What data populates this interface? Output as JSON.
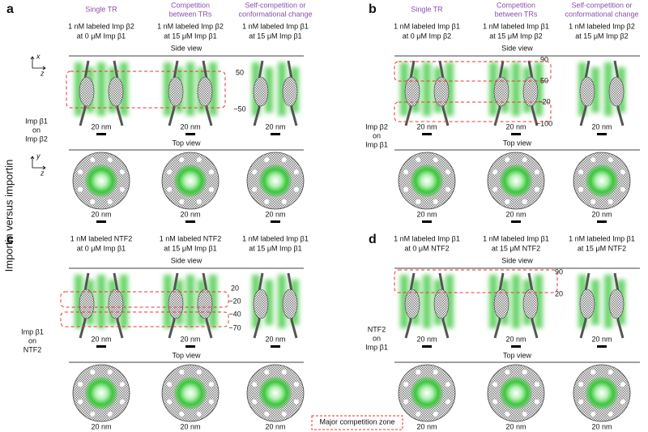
{
  "side_label": "Importin versus importin",
  "legend": "Major competition zone",
  "panels": [
    {
      "letter": "a",
      "columns": [
        {
          "title": [
            "Single TR"
          ],
          "condition": [
            "1 nM labeled Imp β2",
            "at 0 μM Imp β1"
          ]
        },
        {
          "title": [
            "Competition",
            "between TRs"
          ],
          "condition": [
            "1 nM labeled Imp β2",
            "at 15 μM Imp β1"
          ]
        },
        {
          "title": [
            "Self-competition or",
            "conformational change"
          ],
          "condition": [
            "1 nM labeled Imp β1",
            "at 15 μM Imp β1"
          ]
        }
      ],
      "side_view": "Side view",
      "top_view": "Top view",
      "scale": "20 nm",
      "positions": [
        "50",
        "−50"
      ],
      "pair": [
        "Imp β1",
        "on",
        "Imp β2"
      ],
      "axes": {
        "side": [
          "x",
          "z"
        ],
        "top": [
          "y",
          "z"
        ]
      }
    },
    {
      "letter": "b",
      "columns": [
        {
          "title": [
            "Single TR"
          ],
          "condition": [
            "1 nM labeled Imp β1",
            "at 0 μM Imp β2"
          ]
        },
        {
          "title": [
            "Competition",
            "between TRs"
          ],
          "condition": [
            "1 nM labeled Imp β1",
            "at 15 μM Imp β2"
          ]
        },
        {
          "title": [
            "Self-competition or",
            "conformational change"
          ],
          "condition": [
            "1 nM labeled Imp β2",
            "at 15 μM Imp β2"
          ]
        }
      ],
      "side_view": "Side view",
      "top_view": "Top view",
      "scale": "20 nm",
      "positions": [
        "90",
        "50",
        "−20",
        "−100"
      ],
      "pair": [
        "Imp β2",
        "on",
        "Imp β1"
      ]
    },
    {
      "letter": "c",
      "columns": [
        {
          "condition": [
            "1 nM labeled NTF2",
            "at 0 μM Imp β1"
          ]
        },
        {
          "condition": [
            "1 nM labeled NTF2",
            "at 15 μM Imp β1"
          ]
        },
        {
          "condition": [
            "1 nM labeled Imp β1",
            "at 15 μM Imp β1"
          ]
        }
      ],
      "side_view": "Side view",
      "top_view": "Top view",
      "scale": "20 nm",
      "positions": [
        "20",
        "−20",
        "−40",
        "−70"
      ],
      "pair": [
        "Imp β1",
        "on",
        "NTF2"
      ]
    },
    {
      "letter": "d",
      "columns": [
        {
          "condition": [
            "1 nM labeled Imp β1",
            "at 0 μM NTF2"
          ]
        },
        {
          "condition": [
            "1 nM labeled Imp β1",
            "at 15 μM NTF2"
          ]
        },
        {
          "condition": [
            "1 nM labeled Imp β1",
            "at 15 μM NTF2"
          ]
        }
      ],
      "side_view": "Side view",
      "top_view": "Top view",
      "scale": "20 nm",
      "positions": [
        "90",
        "20"
      ],
      "pair": [
        "NTF2",
        "on",
        "Imp β1"
      ]
    }
  ]
}
